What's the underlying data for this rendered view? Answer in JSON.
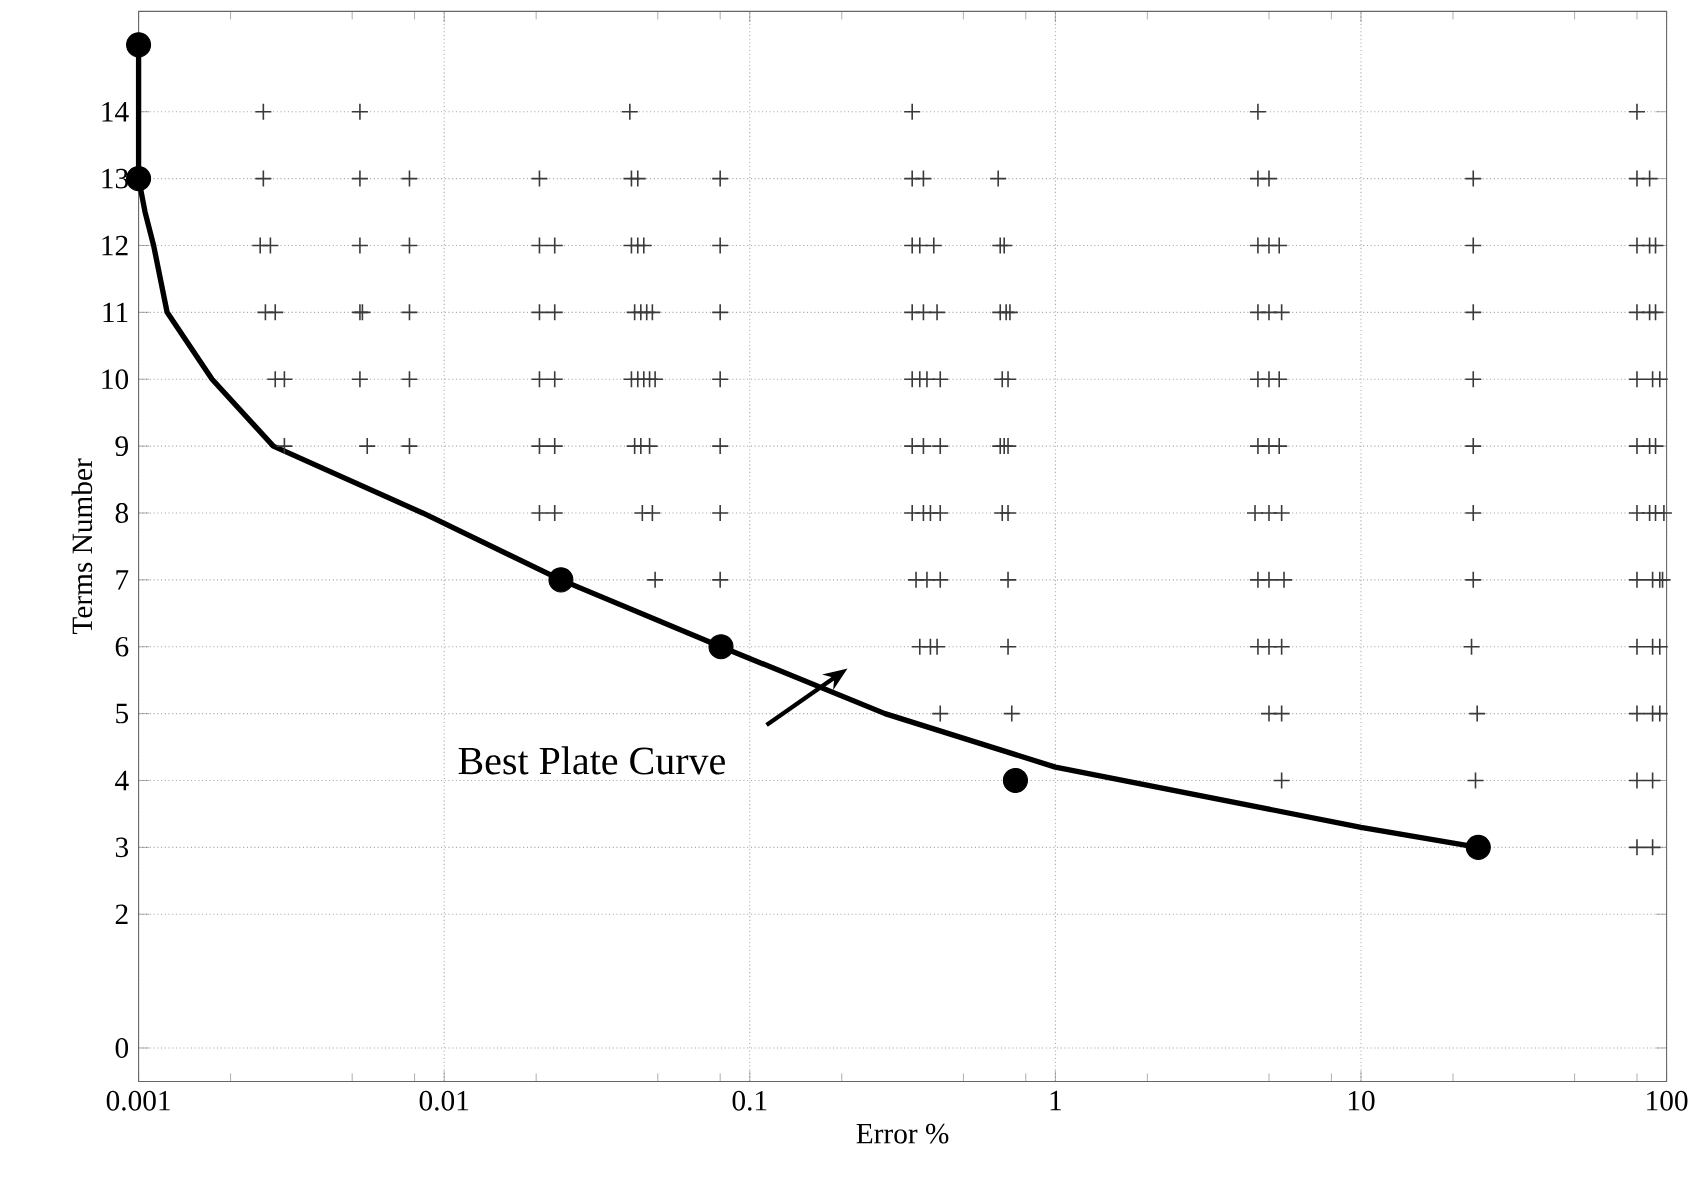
{
  "chart_data": {
    "type": "scatter",
    "xlabel": "Error %",
    "ylabel": "Terms Number",
    "log": "x",
    "grid": true,
    "xlim": [
      0.001,
      100
    ],
    "ylim": [
      -0.5,
      15.5
    ],
    "xticks": [
      0.001,
      0.01,
      0.1,
      1,
      10,
      100,
      {
        "value": 0.002,
        "label": null
      },
      {
        "value": 0.005,
        "label": null
      },
      {
        "value": 0.008,
        "label": null
      },
      {
        "value": 0.02,
        "label": null
      },
      {
        "value": 0.05,
        "label": null
      },
      {
        "value": 0.08,
        "label": null
      },
      {
        "value": 0.2,
        "label": null
      },
      {
        "value": 0.5,
        "label": null
      },
      {
        "value": 0.8,
        "label": null
      },
      {
        "value": 2,
        "label": null
      },
      {
        "value": 5,
        "label": null
      },
      {
        "value": 8,
        "label": null
      },
      {
        "value": 20,
        "label": null
      },
      {
        "value": 50,
        "label": null
      },
      {
        "value": 80,
        "label": null
      }
    ],
    "yticks": [
      0,
      2,
      3,
      4,
      5,
      6,
      7,
      8,
      9,
      10,
      11,
      12,
      13,
      14
    ],
    "annotations": [
      "Best Plate Curve"
    ],
    "series": [
      {
        "marker": "cross",
        "color": "#3a3a3a",
        "x": [
          0.00256,
          0.0053,
          0.0405,
          0.34,
          4.6,
          80,
          0.00256,
          0.0053,
          0.0077,
          0.0205,
          0.041,
          0.043,
          0.08,
          0.34,
          0.37,
          0.65,
          4.6,
          5.0,
          23.3,
          80,
          88,
          0.0025,
          0.0027,
          0.0053,
          0.0077,
          0.0205,
          0.023,
          0.041,
          0.043,
          0.045,
          0.08,
          0.34,
          0.36,
          0.4,
          0.66,
          0.68,
          4.6,
          5.0,
          5.4,
          23.3,
          80,
          88,
          92,
          0.0026,
          0.0028,
          0.0053,
          0.0054,
          0.0077,
          0.0205,
          0.023,
          0.042,
          0.044,
          0.046,
          0.048,
          0.08,
          0.34,
          0.37,
          0.41,
          0.66,
          0.69,
          0.71,
          4.6,
          5.0,
          5.5,
          23.3,
          80,
          88,
          92,
          0.0028,
          0.003,
          0.0053,
          0.0077,
          0.0205,
          0.023,
          0.041,
          0.043,
          0.045,
          0.047,
          0.049,
          0.08,
          0.34,
          0.36,
          0.38,
          0.42,
          0.67,
          0.7,
          4.6,
          5.0,
          5.4,
          23.3,
          80,
          90,
          95,
          0.003,
          0.0056,
          0.0077,
          0.0205,
          0.023,
          0.042,
          0.044,
          0.047,
          0.08,
          0.34,
          0.37,
          0.42,
          0.66,
          0.68,
          0.7,
          4.6,
          5.0,
          5.4,
          23.3,
          80,
          88,
          92,
          0.0205,
          0.023,
          0.0445,
          0.048,
          0.08,
          0.34,
          0.37,
          0.39,
          0.42,
          0.67,
          0.7,
          4.5,
          5.0,
          5.5,
          23.3,
          80,
          88,
          92,
          98,
          0.049,
          0.08,
          0.35,
          0.38,
          0.42,
          0.7,
          4.6,
          5.0,
          5.6,
          23.3,
          80,
          90,
          95,
          97,
          0.36,
          0.39,
          0.41,
          0.7,
          4.6,
          5.0,
          5.5,
          23,
          80,
          90,
          95,
          0.42,
          0.72,
          5.0,
          5.5,
          24,
          80,
          90,
          95,
          5.5,
          23.7,
          80,
          90,
          80,
          90
        ],
        "values": [
          14,
          14,
          14,
          14,
          14,
          14,
          13,
          13,
          13,
          13,
          13,
          13,
          13,
          13,
          13,
          13,
          13,
          13,
          13,
          13,
          13,
          12,
          12,
          12,
          12,
          12,
          12,
          12,
          12,
          12,
          12,
          12,
          12,
          12,
          12,
          12,
          12,
          12,
          12,
          12,
          12,
          12,
          12,
          11,
          11,
          11,
          11,
          11,
          11,
          11,
          11,
          11,
          11,
          11,
          11,
          11,
          11,
          11,
          11,
          11,
          11,
          11,
          11,
          11,
          11,
          11,
          11,
          11,
          10,
          10,
          10,
          10,
          10,
          10,
          10,
          10,
          10,
          10,
          10,
          10,
          10,
          10,
          10,
          10,
          10,
          10,
          10,
          10,
          10,
          10,
          10,
          10,
          10,
          9,
          9,
          9,
          9,
          9,
          9,
          9,
          9,
          9,
          9,
          9,
          9,
          9,
          9,
          9,
          9,
          9,
          9,
          9,
          9,
          9,
          9,
          8,
          8,
          8,
          8,
          8,
          8,
          8,
          8,
          8,
          8,
          8,
          8,
          8,
          8,
          8,
          8,
          8,
          8,
          8,
          7,
          7,
          7,
          7,
          7,
          7,
          7,
          7,
          7,
          7,
          7,
          7,
          7,
          7,
          6,
          6,
          6,
          6,
          6,
          6,
          6,
          6,
          6,
          6,
          6,
          5,
          5,
          5,
          5,
          5,
          5,
          5,
          5,
          4,
          4,
          4,
          4,
          3,
          3
        ]
      },
      {
        "type": "line",
        "marker": "none",
        "color": "#000000",
        "x": [
          0.001,
          0.001,
          0.00105,
          0.00112,
          0.00124,
          0.00174,
          0.00276,
          0.0085,
          0.0241,
          0.0805,
          0.277,
          1,
          10,
          24.2
        ],
        "values": [
          15,
          13,
          12.5,
          12,
          11,
          10,
          9,
          8,
          7,
          6,
          5,
          4.2,
          3.3,
          3
        ]
      },
      {
        "marker": "circle",
        "color": "#000000",
        "x": [
          0.001,
          0.001,
          0.0241,
          0.0805,
          0.74,
          24.2
        ],
        "values": [
          15,
          13,
          7,
          6,
          4,
          3
        ]
      }
    ]
  }
}
